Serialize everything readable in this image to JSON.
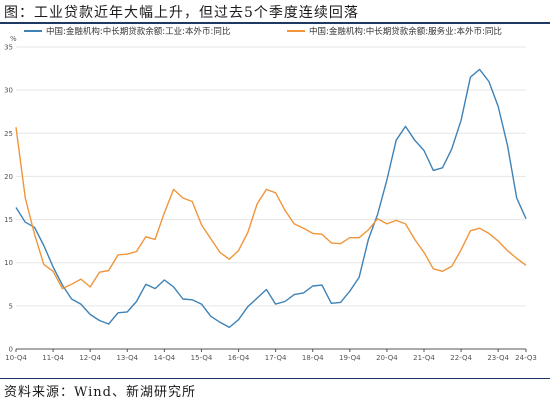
{
  "header": {
    "title": "图：工业贷款近年大幅上升，但过去5个季度连续回落"
  },
  "footer": {
    "source": "资料来源：Wind、新湖研究所"
  },
  "chart_data": {
    "type": "line",
    "title": "",
    "ylabel": "%",
    "xlabel": "",
    "ylim": [
      0,
      35
    ],
    "yticks": [
      0,
      5,
      10,
      15,
      20,
      25,
      30,
      35
    ],
    "x_count": 56,
    "x_tick_labels": [
      {
        "i": 0,
        "label": "10-Q4"
      },
      {
        "i": 4,
        "label": "11-Q4"
      },
      {
        "i": 8,
        "label": "12-Q4"
      },
      {
        "i": 12,
        "label": "13-Q4"
      },
      {
        "i": 16,
        "label": "14-Q4"
      },
      {
        "i": 20,
        "label": "15-Q4"
      },
      {
        "i": 24,
        "label": "16-Q4"
      },
      {
        "i": 28,
        "label": "17-Q4"
      },
      {
        "i": 32,
        "label": "18-Q4"
      },
      {
        "i": 36,
        "label": "19-Q4"
      },
      {
        "i": 40,
        "label": "20-Q4"
      },
      {
        "i": 44,
        "label": "21-Q4"
      },
      {
        "i": 48,
        "label": "22-Q4"
      },
      {
        "i": 52,
        "label": "23-Q4"
      },
      {
        "i": 55,
        "label": "24-Q3"
      }
    ],
    "grid": "horizontal",
    "legend_position": "top",
    "series": [
      {
        "name": "中国:金融机构:中长期贷款余额:工业:本外币:同比",
        "color": "#3f82b6",
        "values": [
          16.4,
          14.7,
          14.1,
          12.0,
          9.5,
          7.4,
          5.8,
          5.2,
          4.0,
          3.3,
          2.9,
          4.2,
          4.3,
          5.5,
          7.5,
          7.0,
          8.0,
          7.2,
          5.8,
          5.7,
          5.2,
          3.8,
          3.1,
          2.5,
          3.4,
          4.9,
          5.9,
          6.9,
          5.2,
          5.5,
          6.3,
          6.5,
          7.3,
          7.4,
          5.3,
          5.4,
          6.7,
          8.3,
          12.7,
          15.6,
          19.6,
          24.2,
          25.8,
          24.2,
          23.0,
          20.7,
          21.0,
          23.2,
          26.5,
          31.5,
          32.4,
          31.0,
          28.1,
          23.6,
          17.5,
          15.1
        ]
      },
      {
        "name": "中国:金融机构:中长期贷款余额:服务业:本外币:同比",
        "color": "#f0953a",
        "values": [
          25.7,
          17.5,
          13.3,
          9.8,
          9.0,
          7.0,
          7.5,
          8.1,
          7.2,
          8.9,
          9.1,
          10.9,
          11.0,
          11.3,
          13.0,
          12.7,
          15.8,
          18.5,
          17.5,
          17.1,
          14.4,
          12.8,
          11.2,
          10.4,
          11.4,
          13.5,
          16.8,
          18.5,
          18.1,
          16.1,
          14.5,
          14.0,
          13.4,
          13.3,
          12.3,
          12.2,
          12.9,
          12.9,
          13.8,
          15.1,
          14.5,
          14.9,
          14.5,
          12.7,
          11.2,
          9.3,
          9.0,
          9.6,
          11.5,
          13.7,
          14.0,
          13.4,
          12.5,
          11.4,
          10.5,
          9.7
        ]
      }
    ]
  }
}
